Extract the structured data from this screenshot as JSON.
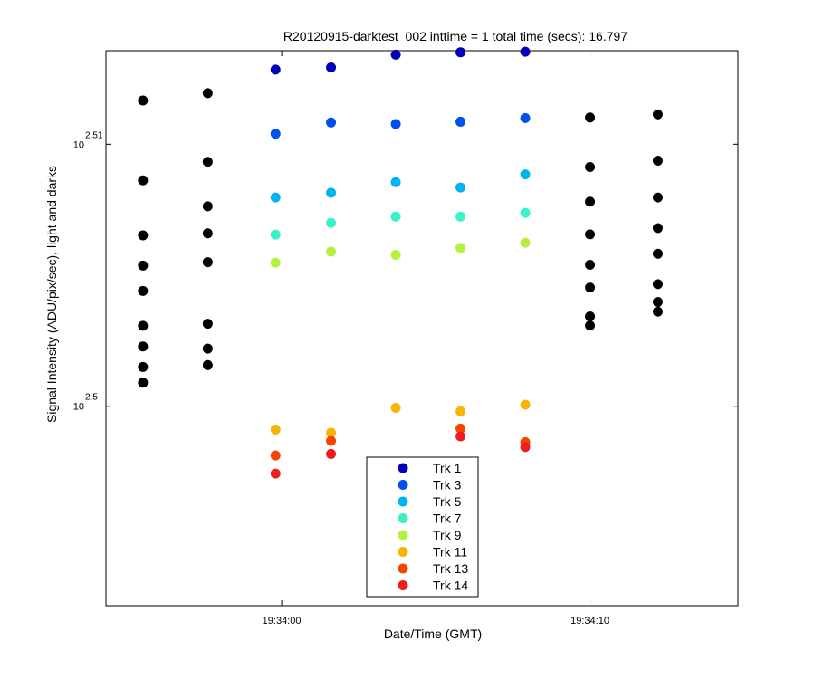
{
  "chart_data": {
    "type": "scatter",
    "title": "R20120915-darktest_002 inttime = 1 total time (secs): 16.797",
    "xlabel": "Date/Time (GMT)",
    "ylabel": "Signal Intensity (ADU/pix/sec), light and darks",
    "x_scale": "time",
    "y_scale": "log",
    "xlim": [
      "19:33:54.3",
      "19:34:14.8"
    ],
    "ylim": [
      2.49239,
      2.51357
    ],
    "x_ticks": [
      "19:34:00",
      "19:34:10"
    ],
    "y_ticks": [
      {
        "base": "10",
        "exp": "2.51",
        "value": 2.51
      },
      {
        "base": "10",
        "exp": "2.5",
        "value": 2.5
      }
    ],
    "grid": false,
    "legend_position": "bottom-center",
    "series": [
      {
        "name": "Trk 1",
        "color": "#0000b8",
        "points": [
          {
            "x": "19:33:59.8",
            "y": 2.51285
          },
          {
            "x": "19:34:01.6",
            "y": 2.51293
          },
          {
            "x": "19:34:03.7",
            "y": 2.51342
          },
          {
            "x": "19:34:05.8",
            "y": 2.51351
          },
          {
            "x": "19:34:07.9",
            "y": 2.51353
          }
        ]
      },
      {
        "name": "Trk 3",
        "color": "#0050f0",
        "points": [
          {
            "x": "19:33:59.8",
            "y": 2.5104
          },
          {
            "x": "19:34:01.6",
            "y": 2.51083
          },
          {
            "x": "19:34:03.7",
            "y": 2.51077
          },
          {
            "x": "19:34:05.8",
            "y": 2.51086
          },
          {
            "x": "19:34:07.9",
            "y": 2.511
          }
        ]
      },
      {
        "name": "Trk 5",
        "color": "#00b4f0",
        "points": [
          {
            "x": "19:33:59.8",
            "y": 2.50797
          },
          {
            "x": "19:34:01.6",
            "y": 2.50815
          },
          {
            "x": "19:34:03.7",
            "y": 2.50855
          },
          {
            "x": "19:34:05.8",
            "y": 2.50835
          },
          {
            "x": "19:34:07.9",
            "y": 2.50885
          }
        ]
      },
      {
        "name": "Trk 7",
        "color": "#3cf0c8",
        "points": [
          {
            "x": "19:33:59.8",
            "y": 2.50655
          },
          {
            "x": "19:34:01.6",
            "y": 2.507
          },
          {
            "x": "19:34:03.7",
            "y": 2.50724
          },
          {
            "x": "19:34:05.8",
            "y": 2.50724
          },
          {
            "x": "19:34:07.9",
            "y": 2.50738
          }
        ]
      },
      {
        "name": "Trk 9",
        "color": "#b4f03c",
        "points": [
          {
            "x": "19:33:59.8",
            "y": 2.50548
          },
          {
            "x": "19:34:01.6",
            "y": 2.5059
          },
          {
            "x": "19:34:03.7",
            "y": 2.50578
          },
          {
            "x": "19:34:05.8",
            "y": 2.50604
          },
          {
            "x": "19:34:07.9",
            "y": 2.50624
          }
        ]
      },
      {
        "name": "Trk 11",
        "color": "#f8b400",
        "points": [
          {
            "x": "19:33:59.8",
            "y": 2.49911
          },
          {
            "x": "19:34:01.6",
            "y": 2.49899
          },
          {
            "x": "19:34:03.7",
            "y": 2.49994
          },
          {
            "x": "19:34:05.8",
            "y": 2.49981
          },
          {
            "x": "19:34:07.9",
            "y": 2.50006
          }
        ]
      },
      {
        "name": "Trk 13",
        "color": "#f04600",
        "points": [
          {
            "x": "19:33:59.8",
            "y": 2.49812
          },
          {
            "x": "19:34:01.6",
            "y": 2.49868
          },
          {
            "x": "19:34:05.8",
            "y": 2.49915
          },
          {
            "x": "19:34:07.9",
            "y": 2.49863
          }
        ]
      },
      {
        "name": "Trk 14",
        "color": "#f01e1e",
        "points": [
          {
            "x": "19:33:59.8",
            "y": 2.49743
          },
          {
            "x": "19:34:01.6",
            "y": 2.49818
          },
          {
            "x": "19:34:05.8",
            "y": 2.49885
          },
          {
            "x": "19:34:07.9",
            "y": 2.49844
          }
        ]
      },
      {
        "color": "#000000",
        "points": [
          {
            "x": "19:33:55.5",
            "y": 2.51167
          },
          {
            "x": "19:33:55.5",
            "y": 2.50862
          },
          {
            "x": "19:33:55.5",
            "y": 2.50652
          },
          {
            "x": "19:33:55.5",
            "y": 2.50537
          },
          {
            "x": "19:33:55.5",
            "y": 2.5044
          },
          {
            "x": "19:33:55.5",
            "y": 2.50307
          },
          {
            "x": "19:33:55.5",
            "y": 2.50228
          },
          {
            "x": "19:33:55.5",
            "y": 2.5015
          },
          {
            "x": "19:33:55.5",
            "y": 2.5009
          },
          {
            "x": "19:33:57.6",
            "y": 2.51195
          },
          {
            "x": "19:33:57.6",
            "y": 2.50933
          },
          {
            "x": "19:33:57.6",
            "y": 2.50763
          },
          {
            "x": "19:33:57.6",
            "y": 2.5066
          },
          {
            "x": "19:33:57.6",
            "y": 2.5055
          },
          {
            "x": "19:33:57.6",
            "y": 2.50315
          },
          {
            "x": "19:33:57.6",
            "y": 2.5022
          },
          {
            "x": "19:33:57.6",
            "y": 2.50157
          },
          {
            "x": "19:34:10.0",
            "y": 2.51102
          },
          {
            "x": "19:34:10.0",
            "y": 2.50913
          },
          {
            "x": "19:34:10.0",
            "y": 2.50781
          },
          {
            "x": "19:34:10.0",
            "y": 2.50656
          },
          {
            "x": "19:34:10.0",
            "y": 2.5054
          },
          {
            "x": "19:34:10.0",
            "y": 2.50453
          },
          {
            "x": "19:34:10.0",
            "y": 2.50343
          },
          {
            "x": "19:34:10.0",
            "y": 2.50308
          },
          {
            "x": "19:34:12.2",
            "y": 2.51114
          },
          {
            "x": "19:34:12.2",
            "y": 2.50937
          },
          {
            "x": "19:34:12.2",
            "y": 2.50797
          },
          {
            "x": "19:34:12.2",
            "y": 2.5068
          },
          {
            "x": "19:34:12.2",
            "y": 2.50582
          },
          {
            "x": "19:34:12.2",
            "y": 2.50466
          },
          {
            "x": "19:34:12.2",
            "y": 2.50398
          },
          {
            "x": "19:34:12.2",
            "y": 2.50361
          }
        ]
      }
    ]
  }
}
